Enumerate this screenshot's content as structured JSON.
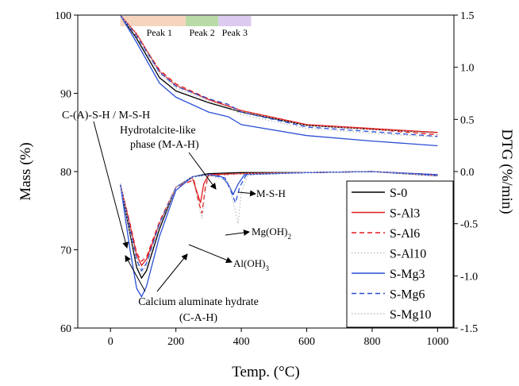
{
  "chart_data": {
    "type": "line",
    "xlabel": "Temp. (°C)",
    "ylabel_left": "Mass (%)",
    "ylabel_right": "DTG (%/min)",
    "xlim": [
      -100,
      1050
    ],
    "ylim_left": [
      60,
      100
    ],
    "ylim_right": [
      -1.5,
      1.5
    ],
    "x_ticks": [
      0,
      200,
      400,
      600,
      800,
      1000
    ],
    "y_ticks_left": [
      60,
      70,
      80,
      90,
      100
    ],
    "y_ticks_right": [
      "1.5",
      "1.0",
      "0.5",
      "0.0",
      "-0.5",
      "-1.0",
      "-1.5"
    ],
    "y_ticks_right_values": [
      1.5,
      1.0,
      0.5,
      0.0,
      -0.5,
      -1.0,
      -1.5
    ],
    "grid": false,
    "legend_position": "bottom-right",
    "peak_bands": [
      {
        "label": "Peak 1",
        "x": [
          30,
          230
        ],
        "color": "#f6d5bf"
      },
      {
        "label": "Peak 2",
        "x": [
          230,
          330
        ],
        "color": "#b9dba7"
      },
      {
        "label": "Peak 3",
        "x": [
          330,
          430
        ],
        "color": "#dccaf0"
      }
    ],
    "series": [
      {
        "name": "S-0",
        "color": "#000000",
        "dash": "solid",
        "tg": [
          [
            30,
            100
          ],
          [
            80,
            97
          ],
          [
            150,
            92
          ],
          [
            200,
            90.3
          ],
          [
            300,
            88.8
          ],
          [
            400,
            87.6
          ],
          [
            600,
            85.9
          ],
          [
            800,
            85.4
          ],
          [
            1000,
            85
          ]
        ],
        "dtg": [
          [
            30,
            -0.12
          ],
          [
            60,
            -0.6
          ],
          [
            80,
            -0.92
          ],
          [
            95,
            -1.02
          ],
          [
            110,
            -0.95
          ],
          [
            150,
            -0.55
          ],
          [
            200,
            -0.15
          ],
          [
            250,
            -0.05
          ],
          [
            300,
            -0.02
          ],
          [
            400,
            -0.01
          ],
          [
            600,
            -0.01
          ],
          [
            800,
            0.0
          ],
          [
            1000,
            -0.04
          ]
        ]
      },
      {
        "name": "S-Al3",
        "color": "#e31a1c",
        "dash": "solid",
        "tg": [
          [
            30,
            100
          ],
          [
            80,
            97.6
          ],
          [
            150,
            92.8
          ],
          [
            200,
            91
          ],
          [
            300,
            89.2
          ],
          [
            400,
            87.8
          ],
          [
            600,
            86
          ],
          [
            800,
            85.5
          ],
          [
            1000,
            85
          ]
        ],
        "dtg": [
          [
            30,
            -0.12
          ],
          [
            60,
            -0.52
          ],
          [
            80,
            -0.8
          ],
          [
            95,
            -0.9
          ],
          [
            110,
            -0.84
          ],
          [
            150,
            -0.5
          ],
          [
            200,
            -0.15
          ],
          [
            250,
            -0.06
          ],
          [
            265,
            -0.2
          ],
          [
            275,
            -0.3
          ],
          [
            285,
            -0.12
          ],
          [
            300,
            -0.03
          ],
          [
            400,
            -0.02
          ],
          [
            600,
            -0.01
          ],
          [
            800,
            0.0
          ],
          [
            1000,
            -0.03
          ]
        ]
      },
      {
        "name": "S-Al6",
        "color": "#e31a1c",
        "dash": "dashed",
        "tg": [
          [
            30,
            100
          ],
          [
            80,
            97.4
          ],
          [
            150,
            93
          ],
          [
            200,
            91.2
          ],
          [
            300,
            89.3
          ],
          [
            400,
            87.8
          ],
          [
            600,
            86
          ],
          [
            800,
            85.4
          ],
          [
            1000,
            84.7
          ]
        ],
        "dtg": [
          [
            30,
            -0.12
          ],
          [
            60,
            -0.5
          ],
          [
            80,
            -0.78
          ],
          [
            95,
            -0.86
          ],
          [
            110,
            -0.82
          ],
          [
            150,
            -0.48
          ],
          [
            200,
            -0.15
          ],
          [
            255,
            -0.08
          ],
          [
            270,
            -0.3
          ],
          [
            280,
            -0.4
          ],
          [
            290,
            -0.15
          ],
          [
            300,
            -0.04
          ],
          [
            400,
            -0.02
          ],
          [
            600,
            -0.01
          ],
          [
            800,
            0.0
          ],
          [
            1000,
            -0.04
          ]
        ]
      },
      {
        "name": "S-Al10",
        "color": "#bdbdbd",
        "dash": "dotted",
        "tg": [
          [
            30,
            100
          ],
          [
            80,
            97.5
          ],
          [
            150,
            92.8
          ],
          [
            200,
            91
          ],
          [
            300,
            89.1
          ],
          [
            400,
            87.7
          ],
          [
            600,
            85.9
          ],
          [
            800,
            85.4
          ],
          [
            1000,
            84.9
          ]
        ],
        "dtg": [
          [
            30,
            -0.12
          ],
          [
            60,
            -0.55
          ],
          [
            80,
            -0.82
          ],
          [
            95,
            -0.92
          ],
          [
            110,
            -0.88
          ],
          [
            150,
            -0.5
          ],
          [
            200,
            -0.15
          ],
          [
            250,
            -0.06
          ],
          [
            280,
            -0.45
          ],
          [
            290,
            -0.2
          ],
          [
            300,
            -0.04
          ],
          [
            400,
            -0.02
          ],
          [
            600,
            -0.01
          ],
          [
            800,
            0.0
          ],
          [
            1000,
            -0.04
          ]
        ]
      },
      {
        "name": "S-Mg3",
        "color": "#2a4fd6",
        "dash": "solid",
        "tg": [
          [
            30,
            100
          ],
          [
            80,
            96.5
          ],
          [
            150,
            91.3
          ],
          [
            200,
            89.5
          ],
          [
            300,
            87.6
          ],
          [
            360,
            87
          ],
          [
            400,
            86
          ],
          [
            600,
            84.6
          ],
          [
            800,
            83.9
          ],
          [
            1000,
            83.3
          ]
        ],
        "dtg": [
          [
            30,
            -0.12
          ],
          [
            60,
            -0.75
          ],
          [
            80,
            -1.12
          ],
          [
            95,
            -1.2
          ],
          [
            110,
            -1.1
          ],
          [
            150,
            -0.62
          ],
          [
            200,
            -0.18
          ],
          [
            250,
            -0.05
          ],
          [
            300,
            -0.03
          ],
          [
            340,
            -0.05
          ],
          [
            360,
            -0.12
          ],
          [
            375,
            -0.22
          ],
          [
            390,
            -0.12
          ],
          [
            410,
            -0.03
          ],
          [
            600,
            -0.01
          ],
          [
            800,
            0.0
          ],
          [
            1000,
            -0.03
          ]
        ]
      },
      {
        "name": "S-Mg6",
        "color": "#2a4fd6",
        "dash": "dashed",
        "tg": [
          [
            30,
            100
          ],
          [
            80,
            97.3
          ],
          [
            150,
            92.7
          ],
          [
            200,
            90.9
          ],
          [
            300,
            89.3
          ],
          [
            360,
            88.6
          ],
          [
            400,
            87.6
          ],
          [
            600,
            85.7
          ],
          [
            800,
            85.1
          ],
          [
            1000,
            84.5
          ]
        ],
        "dtg": [
          [
            30,
            -0.12
          ],
          [
            60,
            -0.55
          ],
          [
            80,
            -0.85
          ],
          [
            95,
            -0.95
          ],
          [
            110,
            -0.88
          ],
          [
            150,
            -0.5
          ],
          [
            200,
            -0.15
          ],
          [
            250,
            -0.05
          ],
          [
            300,
            -0.03
          ],
          [
            350,
            -0.06
          ],
          [
            370,
            -0.2
          ],
          [
            382,
            -0.3
          ],
          [
            395,
            -0.15
          ],
          [
            415,
            -0.03
          ],
          [
            600,
            -0.01
          ],
          [
            800,
            0.0
          ],
          [
            1000,
            -0.04
          ]
        ]
      },
      {
        "name": "S-Mg10",
        "color": "#bdbdbd",
        "dash": "dotted",
        "tg": [
          [
            30,
            100
          ],
          [
            80,
            97.2
          ],
          [
            150,
            92.5
          ],
          [
            200,
            90.7
          ],
          [
            300,
            89
          ],
          [
            360,
            88.3
          ],
          [
            400,
            87.3
          ],
          [
            600,
            85.5
          ],
          [
            800,
            84.9
          ],
          [
            1000,
            84.4
          ]
        ],
        "dtg": [
          [
            30,
            -0.12
          ],
          [
            60,
            -0.58
          ],
          [
            80,
            -0.88
          ],
          [
            95,
            -0.98
          ],
          [
            110,
            -0.9
          ],
          [
            150,
            -0.52
          ],
          [
            200,
            -0.15
          ],
          [
            250,
            -0.05
          ],
          [
            300,
            -0.03
          ],
          [
            360,
            -0.1
          ],
          [
            380,
            -0.35
          ],
          [
            390,
            -0.5
          ],
          [
            400,
            -0.2
          ],
          [
            420,
            -0.03
          ],
          [
            600,
            -0.01
          ],
          [
            800,
            0.0
          ],
          [
            1000,
            -0.04
          ]
        ]
      }
    ],
    "annotations": [
      {
        "text": "C-(A)-S-H / M-S-H"
      },
      {
        "text": "Hydrotalcite-like"
      },
      {
        "text": "phase (M-A-H)"
      },
      {
        "text": "M-S-H"
      },
      {
        "text": "Mg(OH)",
        "sub": "2"
      },
      {
        "text": "Al(OH)",
        "sub": "3"
      },
      {
        "text": "Calcium aluminate hydrate"
      },
      {
        "text": "(C-A-H)"
      }
    ]
  }
}
